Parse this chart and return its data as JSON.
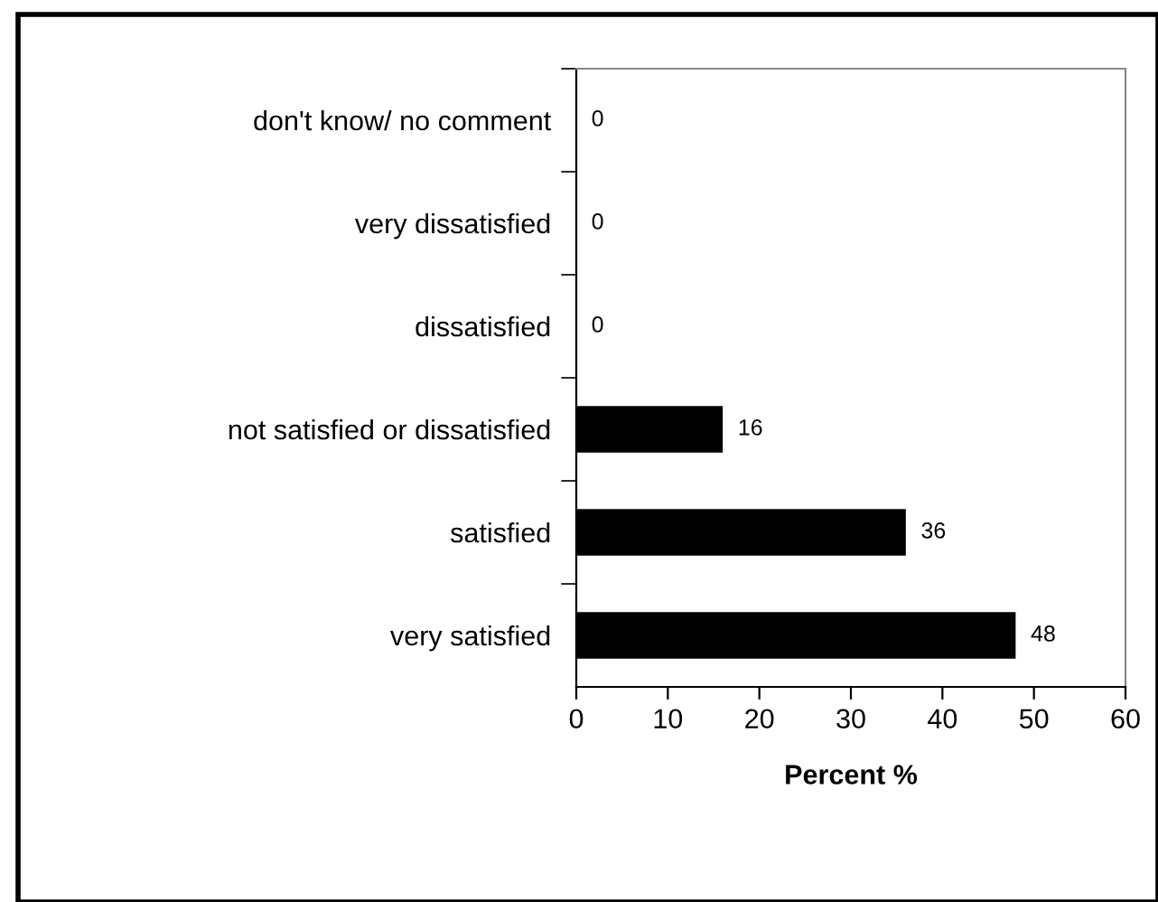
{
  "chart_data": {
    "type": "bar",
    "orientation": "horizontal",
    "xlabel": "Percent %",
    "categories": [
      "don't know/ no comment",
      "very dissatisfied",
      "dissatisfied",
      "not satisfied or dissatisfied",
      "satisfied",
      "very satisfied"
    ],
    "values": [
      0,
      0,
      0,
      16,
      36,
      48
    ],
    "color": "#000000",
    "xlim": [
      0,
      60
    ],
    "xticks": [
      0,
      10,
      20,
      30,
      40,
      50,
      60
    ],
    "data_labels": true,
    "grid": false
  }
}
